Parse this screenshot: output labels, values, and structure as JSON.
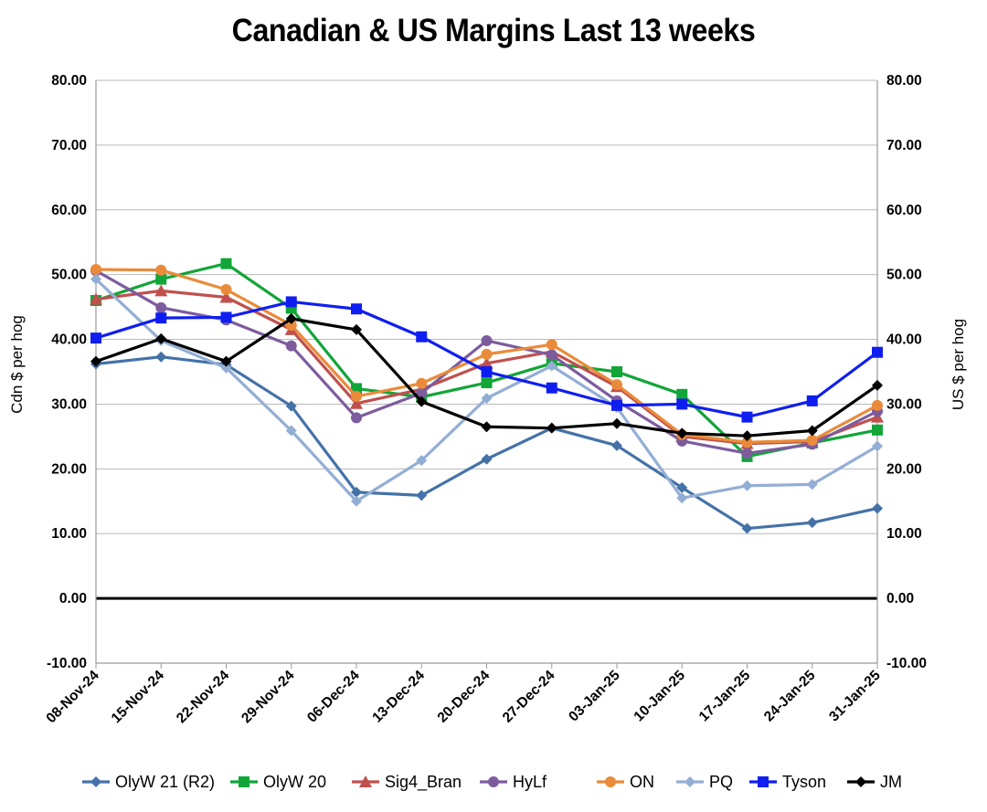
{
  "chart_data": {
    "type": "line",
    "title": "Canadian & US Margins Last 13 weeks",
    "ylabel": "Cdn $ per hog",
    "y2label": "US $ per hog",
    "xlabel": "",
    "ylim": [
      -10,
      80
    ],
    "y_ticks": [
      "80.00",
      "70.00",
      "60.00",
      "50.00",
      "40.00",
      "30.00",
      "20.00",
      "10.00",
      "0.00",
      "-10.00"
    ],
    "grid": "horizontal",
    "legend_position": "bottom",
    "categories": [
      "08-Nov-24",
      "15-Nov-24",
      "22-Nov-24",
      "29-Nov-24",
      "06-Dec-24",
      "13-Dec-24",
      "20-Dec-24",
      "27-Dec-24",
      "03-Jan-25",
      "10-Jan-25",
      "17-Jan-25",
      "24-Jan-25",
      "31-Jan-25"
    ],
    "series": [
      {
        "name": "OlyW 21 (R2)",
        "color": "#4472A8",
        "marker": "diamond",
        "values": [
          36.2,
          37.3,
          36.1,
          29.7,
          16.4,
          15.9,
          21.5,
          26.3,
          23.6,
          17.1,
          10.8,
          11.7,
          13.9
        ]
      },
      {
        "name": "OlyW 20",
        "color": "#12A538",
        "marker": "square",
        "values": [
          46.0,
          49.3,
          51.7,
          44.8,
          32.4,
          31.1,
          33.3,
          36.3,
          35.0,
          31.5,
          21.9,
          24.0,
          26.0
        ]
      },
      {
        "name": "Sig4_Bran",
        "color": "#C0504D",
        "marker": "triangle",
        "values": [
          46.2,
          47.5,
          46.5,
          41.5,
          30.1,
          32.3,
          36.3,
          38.1,
          32.7,
          25.0,
          23.9,
          24.2,
          28.0
        ]
      },
      {
        "name": "HyLf",
        "color": "#7D5C9E",
        "marker": "circle",
        "values": [
          50.6,
          44.9,
          43.0,
          39.0,
          27.9,
          31.7,
          39.8,
          37.6,
          30.5,
          24.3,
          22.4,
          23.8,
          28.9
        ]
      },
      {
        "name": "ON",
        "color": "#E98B3A",
        "marker": "circle",
        "values": [
          50.8,
          50.7,
          47.7,
          42.2,
          31.2,
          33.2,
          37.7,
          39.2,
          33.0,
          25.3,
          24.1,
          24.4,
          29.8
        ]
      },
      {
        "name": "PQ",
        "color": "#93AED5",
        "marker": "diamond",
        "values": [
          49.3,
          39.8,
          35.6,
          25.9,
          15.0,
          21.3,
          30.9,
          35.9,
          29.5,
          15.5,
          17.4,
          17.6,
          23.5
        ]
      },
      {
        "name": "Tyson",
        "color": "#0F1EF0",
        "marker": "square",
        "values": [
          40.2,
          43.3,
          43.4,
          45.8,
          44.7,
          40.4,
          35.0,
          32.5,
          29.8,
          30.0,
          28.0,
          30.5,
          38.0
        ]
      },
      {
        "name": "JM",
        "color": "#000000",
        "marker": "diamond",
        "values": [
          36.6,
          40.1,
          36.6,
          43.2,
          41.5,
          30.4,
          26.5,
          26.3,
          27.0,
          25.5,
          25.1,
          25.9,
          32.9
        ]
      }
    ]
  }
}
